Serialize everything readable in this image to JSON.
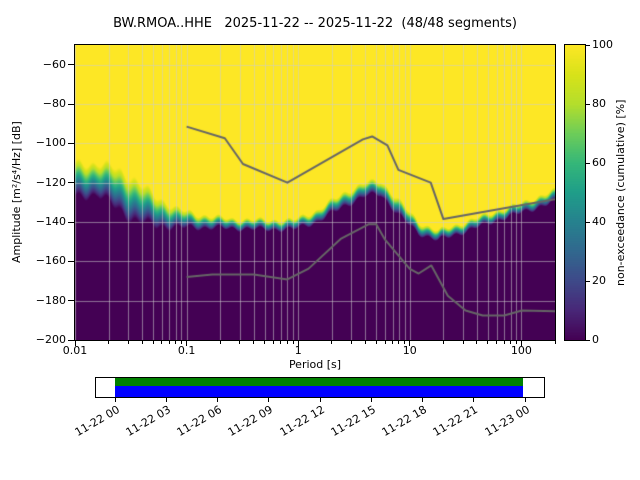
{
  "title": "BW.RMOA..HHE   2025-11-22 -- 2025-11-22  (48/48 segments)",
  "axes": {
    "xlabel": "Period [s]",
    "ylabel": "Amplitude [m²/s⁴/Hz] [dB]",
    "x_tick_labels": [
      "0.01",
      "0.1",
      "1",
      "10",
      "100"
    ],
    "y_tick_labels": [
      "−60",
      "−80",
      "−100",
      "−120",
      "−140",
      "−160",
      "−180",
      "−200"
    ]
  },
  "colorbar": {
    "label": "non-exceedance (cumulative) [%]",
    "tick_labels": [
      "0",
      "20",
      "40",
      "60",
      "80",
      "100"
    ]
  },
  "timeline": {
    "tick_labels": [
      "11-22 00",
      "11-22 03",
      "11-22 06",
      "11-22 09",
      "11-22 12",
      "11-22 15",
      "11-22 18",
      "11-22 21",
      "11-23 00"
    ],
    "bar_color_top": "#008000",
    "bar_color_bottom": "#0000ff",
    "coverage_start_frac": 0.0,
    "coverage_end_frac": 1.0
  },
  "chart_data": {
    "type": "heatmap",
    "title": "BW.RMOA..HHE   2025-11-22 -- 2025-11-22  (48/48 segments)",
    "xlabel": "Period [s]",
    "ylabel": "Amplitude [m²/s⁴/Hz] [dB]",
    "x_scale": "log",
    "xlim": [
      0.01,
      200
    ],
    "ylim": [
      -200,
      -50
    ],
    "x_major_ticks": [
      0.01,
      0.1,
      1,
      10,
      100
    ],
    "y_major_ticks": [
      -60,
      -80,
      -100,
      -120,
      -140,
      -160,
      -180,
      -200
    ],
    "grid": true,
    "colormap": "viridis",
    "colorbar_range": [
      0,
      100
    ],
    "colorbar_ticks": [
      0,
      20,
      40,
      60,
      80,
      100
    ],
    "legend_position": "none",
    "nonexceedance_transition": {
      "note": "dB level where cumulative non-exceedance transitions 0→100% (center) and half-width of transition band, vs period in s",
      "points": [
        {
          "period": 0.01,
          "center": -119,
          "halfwidth": 9
        },
        {
          "period": 0.016,
          "center": -118,
          "halfwidth": 8
        },
        {
          "period": 0.022,
          "center": -122,
          "halfwidth": 10
        },
        {
          "period": 0.032,
          "center": -128,
          "halfwidth": 11
        },
        {
          "period": 0.05,
          "center": -134,
          "halfwidth": 8
        },
        {
          "period": 0.08,
          "center": -138,
          "halfwidth": 5
        },
        {
          "period": 0.12,
          "center": -139.5,
          "halfwidth": 3.5
        },
        {
          "period": 0.25,
          "center": -141,
          "halfwidth": 2.5
        },
        {
          "period": 0.5,
          "center": -141.5,
          "halfwidth": 2.5
        },
        {
          "period": 0.9,
          "center": -141.5,
          "halfwidth": 2.5
        },
        {
          "period": 1.5,
          "center": -137,
          "halfwidth": 3
        },
        {
          "period": 2.5,
          "center": -129,
          "halfwidth": 3.5
        },
        {
          "period": 4.0,
          "center": -123.5,
          "halfwidth": 3.5
        },
        {
          "period": 5.5,
          "center": -122.5,
          "halfwidth": 3.5
        },
        {
          "period": 8.0,
          "center": -133,
          "halfwidth": 4
        },
        {
          "period": 12.0,
          "center": -143,
          "halfwidth": 3
        },
        {
          "period": 18.0,
          "center": -147,
          "halfwidth": 2.5
        },
        {
          "period": 30.0,
          "center": -143,
          "halfwidth": 2.5
        },
        {
          "period": 60.0,
          "center": -137,
          "halfwidth": 2.5
        },
        {
          "period": 100.0,
          "center": -133,
          "halfwidth": 2.5
        },
        {
          "period": 200.0,
          "center": -127,
          "halfwidth": 3
        }
      ]
    },
    "noise_models": {
      "color": "#666666",
      "nhnm": [
        [
          0.1,
          -91.5
        ],
        [
          0.22,
          -97.4
        ],
        [
          0.32,
          -110.5
        ],
        [
          0.8,
          -120.0
        ],
        [
          3.8,
          -98.0
        ],
        [
          4.6,
          -96.5
        ],
        [
          6.3,
          -101.0
        ],
        [
          7.9,
          -113.5
        ],
        [
          15.4,
          -120.0
        ],
        [
          20.0,
          -138.5
        ],
        [
          200.0,
          -128.4
        ]
      ],
      "nlnm": [
        [
          0.1,
          -168.0
        ],
        [
          0.17,
          -166.7
        ],
        [
          0.4,
          -166.7
        ],
        [
          0.8,
          -169.2
        ],
        [
          1.24,
          -163.7
        ],
        [
          2.4,
          -148.6
        ],
        [
          4.3,
          -141.1
        ],
        [
          5.0,
          -141.1
        ],
        [
          6.0,
          -149.0
        ],
        [
          10.0,
          -163.8
        ],
        [
          12.0,
          -166.2
        ],
        [
          15.6,
          -162.1
        ],
        [
          21.9,
          -177.5
        ],
        [
          31.6,
          -185.0
        ],
        [
          45.0,
          -187.5
        ],
        [
          70.0,
          -187.5
        ],
        [
          101.0,
          -185.0
        ],
        [
          200.0,
          -185.4
        ]
      ]
    },
    "timeline": {
      "tick_labels": [
        "11-22 00",
        "11-22 03",
        "11-22 06",
        "11-22 09",
        "11-22 12",
        "11-22 15",
        "11-22 18",
        "11-22 21",
        "11-23 00"
      ],
      "coverage_start_frac": 0.0,
      "coverage_end_frac": 1.0
    }
  }
}
